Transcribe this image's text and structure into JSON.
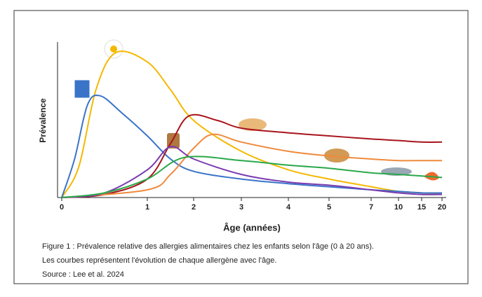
{
  "chart_data": {
    "type": "line",
    "y_label": "Prévalence",
    "x_label": "Âge (années)",
    "xlim": [
      0,
      20
    ],
    "xticks": [
      0,
      1,
      2,
      3,
      4,
      5,
      7,
      10,
      15,
      20
    ],
    "ylim": [
      0,
      100
    ],
    "series": [
      {
        "color": "#f5b800",
        "x": [
          0,
          0.2,
          0.4,
          0.63,
          1,
          1.5,
          2,
          3,
          4,
          5,
          7,
          10,
          15,
          20
        ],
        "values": [
          0,
          20,
          70,
          94,
          88,
          70,
          50,
          30,
          18,
          12,
          7,
          4,
          3,
          2
        ]
      },
      {
        "color": "#3a74c9",
        "x": [
          0,
          0.15,
          0.3,
          0.45,
          0.7,
          1,
          1.5,
          2,
          3,
          4,
          5,
          7,
          10,
          15,
          20
        ],
        "values": [
          0,
          25,
          60,
          66,
          55,
          40,
          25,
          17,
          12,
          9,
          7,
          5,
          4,
          3,
          3
        ]
      },
      {
        "color": "#a8141c",
        "x": [
          0,
          0.5,
          1,
          1.5,
          1.9,
          2.5,
          3,
          4,
          5,
          7,
          10,
          15,
          20
        ],
        "values": [
          0,
          2,
          12,
          35,
          53,
          50,
          45,
          42,
          40,
          38,
          37,
          36,
          36
        ]
      },
      {
        "color": "#ef8a3c",
        "x": [
          0,
          1,
          1.5,
          2,
          2.4,
          3,
          4,
          5,
          7,
          10,
          15,
          20
        ],
        "values": [
          0,
          5,
          15,
          32,
          41,
          36,
          30,
          27,
          25,
          24,
          24,
          24
        ]
      },
      {
        "color": "#7a3bb0",
        "x": [
          0,
          0.5,
          1,
          1.5,
          2,
          3,
          4,
          5,
          7,
          10,
          15,
          20
        ],
        "values": [
          0,
          3,
          18,
          33,
          25,
          15,
          10,
          8,
          5,
          3,
          2,
          2
        ]
      },
      {
        "color": "#2aa84a",
        "x": [
          0,
          0.5,
          1,
          1.8,
          3,
          4,
          5,
          7,
          10,
          15,
          20
        ],
        "values": [
          0,
          3,
          12,
          26,
          24,
          21,
          19,
          16,
          15,
          14,
          13
        ]
      }
    ]
  },
  "caption": [
    "Figure 1 : Prévalence relative des allergies alimentaires chez les enfants selon l'âge (0 à 20 ans).",
    "Les courbes représentent l'évolution de chaque allergène avec l'âge.",
    "Source : Lee et al. 2024"
  ]
}
